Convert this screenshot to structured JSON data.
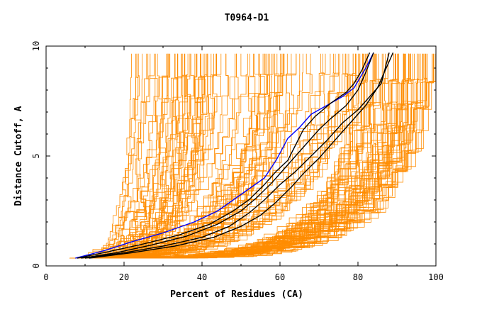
{
  "chart_data": {
    "type": "line",
    "title": "T0964-D1",
    "xlabel": "Percent of Residues (CA)",
    "ylabel": "Distance Cutoff, A",
    "xlim": [
      0,
      100
    ],
    "ylim": [
      0,
      10
    ],
    "x_ticks": [
      "0",
      "20",
      "40",
      "60",
      "80",
      "100"
    ],
    "y_ticks": [
      "0",
      "5",
      "10"
    ],
    "grid": false,
    "colors": {
      "background": "#ffffff",
      "axis": "#000000",
      "models": "#ff8c00",
      "highlight": "#0000ff",
      "reference": "#000000"
    },
    "series": [
      {
        "role": "highlight",
        "color": "#0000ff",
        "x": [
          7.5,
          15,
          22,
          30,
          38,
          44,
          48,
          52,
          56,
          59,
          62,
          65,
          68,
          72,
          76,
          79,
          82,
          84
        ],
        "y": [
          0.35,
          0.7,
          1.1,
          1.5,
          2.0,
          2.5,
          3.0,
          3.5,
          4.0,
          4.8,
          5.8,
          6.3,
          6.9,
          7.3,
          7.7,
          8.1,
          9.0,
          9.7
        ]
      },
      {
        "role": "reference",
        "color": "#000000",
        "x": [
          8,
          16,
          25,
          34,
          42,
          48,
          52,
          56,
          59,
          62,
          64,
          66,
          69,
          73,
          77,
          79,
          81,
          83
        ],
        "y": [
          0.35,
          0.65,
          1.0,
          1.4,
          1.9,
          2.5,
          3.0,
          3.7,
          4.3,
          4.8,
          5.5,
          6.2,
          6.8,
          7.4,
          7.9,
          8.3,
          8.9,
          9.7
        ]
      },
      {
        "role": "reference",
        "color": "#000000",
        "x": [
          9,
          18,
          27,
          36,
          44,
          50,
          54,
          58,
          61,
          64,
          67,
          70,
          73,
          77,
          80,
          82,
          84
        ],
        "y": [
          0.35,
          0.6,
          0.95,
          1.35,
          1.9,
          2.5,
          3.1,
          3.8,
          4.4,
          5.0,
          5.6,
          6.2,
          6.7,
          7.3,
          8.0,
          8.8,
          9.7
        ]
      },
      {
        "role": "reference",
        "color": "#000000",
        "x": [
          10,
          20,
          30,
          40,
          47,
          52,
          56,
          60,
          64,
          68,
          72,
          76,
          80,
          83,
          86,
          87,
          88
        ],
        "y": [
          0.35,
          0.6,
          0.9,
          1.3,
          1.8,
          2.4,
          3.0,
          3.7,
          4.3,
          5.0,
          5.7,
          6.5,
          7.1,
          7.7,
          8.3,
          9.0,
          9.7
        ]
      },
      {
        "role": "reference",
        "color": "#000000",
        "x": [
          11,
          22,
          33,
          43,
          50,
          55,
          59,
          63,
          66,
          70,
          74,
          78,
          82,
          85,
          87,
          89
        ],
        "y": [
          0.35,
          0.6,
          0.9,
          1.3,
          1.8,
          2.3,
          2.9,
          3.6,
          4.2,
          4.9,
          5.7,
          6.5,
          7.3,
          8.1,
          8.9,
          9.7
        ]
      }
    ]
  }
}
